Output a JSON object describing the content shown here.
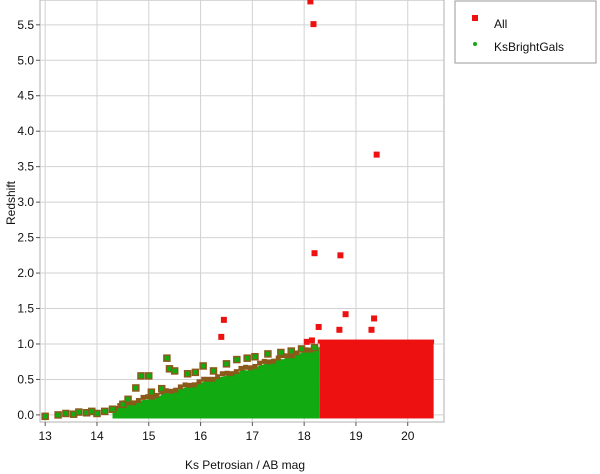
{
  "chart_data": {
    "type": "scatter",
    "title": "",
    "xlabel": "Ks Petrosian / AB mag",
    "ylabel": "Redshift",
    "xlim": [
      12.9,
      20.7
    ],
    "ylim": [
      -0.1,
      5.85
    ],
    "xticks": [
      13,
      14,
      15,
      16,
      17,
      18,
      19,
      20
    ],
    "yticks": [
      0.0,
      0.5,
      1.0,
      1.5,
      2.0,
      2.5,
      3.0,
      3.5,
      4.0,
      4.5,
      5.0,
      5.5
    ],
    "ytick_labels": [
      "0.0",
      "0.5",
      "1.0",
      "1.5",
      "2.0",
      "2.5",
      "3.0",
      "3.5",
      "4.0",
      "4.5",
      "5.0",
      "5.5"
    ],
    "grid": true,
    "legend_position": "outside-top-right",
    "series": [
      {
        "name": "All",
        "color": "#ee1111",
        "marker": "square",
        "density_region": {
          "x_min": 18.3,
          "x_max": 20.5,
          "y_min": -0.05,
          "y_max": 1.02
        },
        "points": [
          [
            18.12,
            5.83
          ],
          [
            18.18,
            5.51
          ],
          [
            19.4,
            3.67
          ],
          [
            18.2,
            2.28
          ],
          [
            18.7,
            2.25
          ],
          [
            18.8,
            1.42
          ],
          [
            19.35,
            1.36
          ],
          [
            18.28,
            1.24
          ],
          [
            18.68,
            1.2
          ],
          [
            19.3,
            1.2
          ],
          [
            16.45,
            1.34
          ],
          [
            16.4,
            1.1
          ],
          [
            18.05,
            1.03
          ],
          [
            18.15,
            1.05
          ]
        ]
      },
      {
        "name": "KsBrightGals",
        "color": "#11aa11",
        "marker": "circle",
        "outline": "#8b5a1a",
        "density_region": {
          "x_start": 14.3,
          "x_end": 18.3,
          "y_top_start": 0.08,
          "y_top_end": 0.95
        },
        "points": [
          [
            13.0,
            -0.02
          ],
          [
            13.25,
            0.0
          ],
          [
            13.4,
            0.02
          ],
          [
            13.55,
            0.01
          ],
          [
            13.65,
            0.04
          ],
          [
            13.8,
            0.03
          ],
          [
            13.9,
            0.05
          ],
          [
            14.0,
            0.02
          ],
          [
            14.15,
            0.05
          ],
          [
            14.3,
            0.08
          ],
          [
            14.5,
            0.15
          ],
          [
            14.6,
            0.22
          ],
          [
            14.75,
            0.38
          ],
          [
            14.85,
            0.55
          ],
          [
            15.0,
            0.55
          ],
          [
            15.05,
            0.32
          ],
          [
            15.25,
            0.37
          ],
          [
            15.35,
            0.8
          ],
          [
            15.4,
            0.65
          ],
          [
            15.5,
            0.62
          ],
          [
            15.75,
            0.58
          ],
          [
            15.9,
            0.6
          ],
          [
            16.05,
            0.69
          ],
          [
            16.25,
            0.62
          ],
          [
            16.5,
            0.72
          ],
          [
            16.7,
            0.78
          ],
          [
            16.9,
            0.8
          ],
          [
            17.05,
            0.82
          ],
          [
            17.3,
            0.86
          ],
          [
            17.55,
            0.88
          ],
          [
            17.75,
            0.9
          ],
          [
            17.95,
            0.93
          ],
          [
            18.2,
            0.95
          ]
        ]
      }
    ]
  }
}
